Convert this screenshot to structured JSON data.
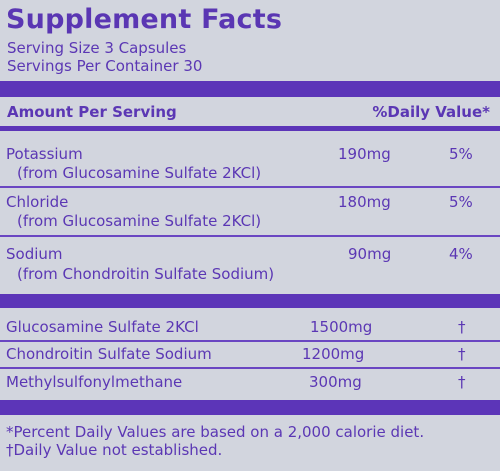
{
  "label": {
    "title": "Supplement Facts",
    "serving_size": "Serving Size 3 Capsules",
    "servings_per_container": "Servings Per Container 30",
    "header_amount": "Amount Per Serving",
    "header_dv": "%Daily Value*",
    "minerals": [
      {
        "name": "Potassium",
        "source": "(from Glucosamine Sulfate 2KCl)",
        "amount": "190mg",
        "dv": "5%"
      },
      {
        "name": "Chloride",
        "source": "(from Glucosamine Sulfate 2KCl)",
        "amount": "180mg",
        "dv": "5%"
      },
      {
        "name": "Sodium",
        "source": "(from Chondroitin Sulfate Sodium)",
        "amount": "90mg",
        "dv": "4%"
      }
    ],
    "ingredients": [
      {
        "name": "Glucosamine Sulfate 2KCl",
        "amount": "1500mg",
        "dv": "†"
      },
      {
        "name": "Chondroitin Sulfate Sodium",
        "amount": "1200mg",
        "dv": "†"
      },
      {
        "name": "Methylsulfonylmethane",
        "amount": "300mg",
        "dv": "†"
      }
    ],
    "footnote_1": "*Percent Daily Values are based on a 2,000 calorie diet.",
    "footnote_2": "†Daily Value not established."
  },
  "colors": {
    "ink": "#5b37b4",
    "background": "#d2d5de"
  }
}
